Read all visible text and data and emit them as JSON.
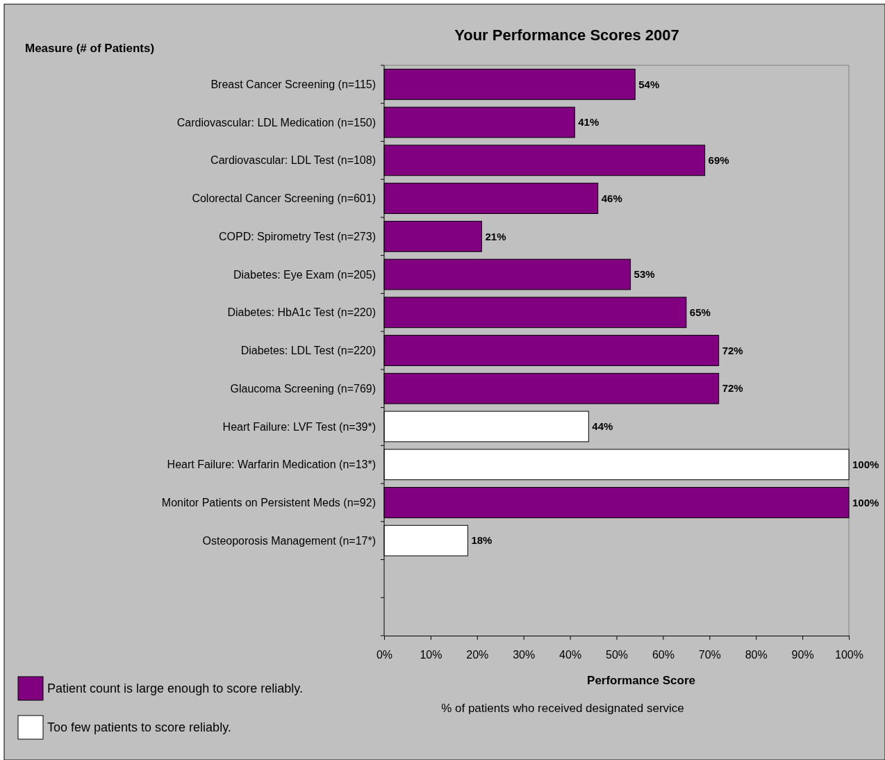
{
  "chart_data": {
    "type": "bar",
    "orientation": "horizontal",
    "title": "Your Performance Scores 2007",
    "ylabel": "Measure (# of Patients)",
    "xlabel": "Performance Score",
    "annotations": [
      "% of patients who received designated service"
    ],
    "categories": [
      "Breast Cancer Screening (n=115)",
      "Cardiovascular: LDL Medication (n=150)",
      "Cardiovascular: LDL Test (n=108)",
      "Colorectal Cancer Screening (n=601)",
      "COPD: Spirometry Test (n=273)",
      "Diabetes: Eye Exam (n=205)",
      "Diabetes: HbA1c Test (n=220)",
      "Diabetes: LDL Test (n=220)",
      "Glaucoma Screening (n=769)",
      "Heart Failure: LVF Test (n=39*)",
      "Heart Failure: Warfarin Medication (n=13*)",
      "Monitor Patients on Persistent Meds (n=92)",
      "Osteoporosis Management (n=17*)",
      null,
      null
    ],
    "series": [
      {
        "name": "Patient count is large enough to score reliably.",
        "color": "#800080",
        "values": [
          54,
          41,
          69,
          46,
          21,
          53,
          65,
          72,
          72,
          null,
          null,
          100,
          null,
          null,
          null
        ],
        "value_labels": [
          "54%",
          "41%",
          "69%",
          "46%",
          "21%",
          "53%",
          "65%",
          "72%",
          "72%",
          null,
          null,
          "100%",
          null,
          null,
          null
        ]
      },
      {
        "name": "Too few patients to score reliably.",
        "color": "#ffffff",
        "values": [
          null,
          null,
          null,
          null,
          null,
          null,
          null,
          null,
          null,
          44,
          100,
          null,
          18,
          null,
          null
        ],
        "value_labels": [
          null,
          null,
          null,
          null,
          null,
          null,
          null,
          null,
          null,
          "44%",
          "100%",
          null,
          "18%",
          null,
          null
        ]
      }
    ],
    "xlim": [
      0,
      100
    ],
    "xticks": [
      {
        "value": 0,
        "label": "0%"
      },
      {
        "value": 10,
        "label": "10%"
      },
      {
        "value": 20,
        "label": "20%"
      },
      {
        "value": 30,
        "label": "30%"
      },
      {
        "value": 40,
        "label": "40%"
      },
      {
        "value": 50,
        "label": "50%"
      },
      {
        "value": 60,
        "label": "60%"
      },
      {
        "value": 70,
        "label": "70%"
      },
      {
        "value": 80,
        "label": "80%"
      },
      {
        "value": 90,
        "label": "90%"
      },
      {
        "value": 100,
        "label": "100%"
      }
    ],
    "legend": "bottom left"
  }
}
